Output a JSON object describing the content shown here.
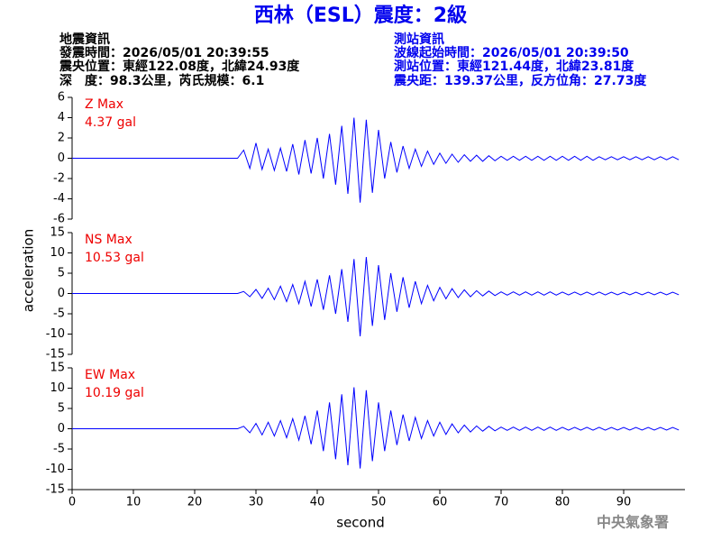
{
  "header": {
    "title": "西林（ESL）震度：2級",
    "left": [
      "地震資訊",
      "發震時間：2026/05/01 20:39:55",
      "震央位置：東經122.08度，北緯24.93度",
      "深　度：98.3公里，芮氏規模：6.1"
    ],
    "right": [
      "測站資訊",
      "波線起始時間：2026/05/01 20:39:50",
      "測站位置：東經121.44度，北緯23.81度",
      "震央距：139.37公里，反方位角：27.73度"
    ]
  },
  "footer": "中央氣象署",
  "chart_data": [
    {
      "type": "line",
      "label": "Z Max",
      "max_label": "4.37 gal",
      "color": "#0000ff",
      "xlim": [
        0,
        100
      ],
      "ylim": [
        -6,
        6
      ],
      "yticks": [
        -6,
        -4,
        -2,
        0,
        2,
        4,
        6
      ],
      "x": [
        0,
        1,
        2,
        3,
        4,
        5,
        6,
        7,
        8,
        9,
        10,
        11,
        12,
        13,
        14,
        15,
        16,
        17,
        18,
        19,
        20,
        21,
        22,
        23,
        24,
        25,
        26,
        27,
        28,
        29,
        30,
        31,
        32,
        33,
        34,
        35,
        36,
        37,
        38,
        39,
        40,
        41,
        42,
        43,
        44,
        45,
        46,
        47,
        48,
        49,
        50,
        51,
        52,
        53,
        54,
        55,
        56,
        57,
        58,
        59,
        60,
        61,
        62,
        63,
        64,
        65,
        66,
        67,
        68,
        69,
        70,
        71,
        72,
        73,
        74,
        75,
        76,
        77,
        78,
        79,
        80,
        81,
        82,
        83,
        84,
        85,
        86,
        87,
        88,
        89,
        90,
        91,
        92,
        93,
        94,
        95,
        96,
        97,
        98,
        99
      ],
      "values": [
        0,
        0,
        0,
        0,
        0,
        0,
        0,
        0,
        0,
        0,
        0,
        0,
        0,
        0,
        0,
        0,
        0,
        0,
        0,
        0,
        0,
        0,
        0,
        0,
        0,
        0,
        0,
        0,
        0.8,
        -1.0,
        1.5,
        -1.1,
        0.9,
        -1.2,
        1.0,
        -1.3,
        1.4,
        -1.6,
        1.8,
        -1.5,
        2.0,
        -2.0,
        2.4,
        -2.6,
        3.2,
        -3.5,
        4.0,
        -4.37,
        3.8,
        -3.4,
        2.8,
        -2.0,
        1.6,
        -1.4,
        1.2,
        -1.0,
        0.9,
        -0.8,
        0.7,
        -0.6,
        0.5,
        -0.5,
        0.4,
        -0.4,
        0.35,
        -0.3,
        0.3,
        -0.3,
        0.25,
        -0.25,
        0.2,
        -0.2,
        0.2,
        -0.2,
        0.2,
        -0.2,
        0.2,
        -0.2,
        0.2,
        -0.2,
        0.2,
        -0.2,
        0.2,
        -0.2,
        0.2,
        -0.2,
        0.15,
        -0.15,
        0.15,
        -0.15,
        0.15,
        -0.15,
        0.15,
        -0.15,
        0.15,
        -0.15,
        0.15,
        -0.15,
        0.15,
        -0.15
      ]
    },
    {
      "type": "line",
      "label": "NS Max",
      "max_label": "10.53 gal",
      "ylabel": "acceleration",
      "color": "#0000ff",
      "xlim": [
        0,
        100
      ],
      "ylim": [
        -15,
        15
      ],
      "yticks": [
        -15,
        -10,
        -5,
        0,
        5,
        10,
        15
      ],
      "x": [
        0,
        1,
        2,
        3,
        4,
        5,
        6,
        7,
        8,
        9,
        10,
        11,
        12,
        13,
        14,
        15,
        16,
        17,
        18,
        19,
        20,
        21,
        22,
        23,
        24,
        25,
        26,
        27,
        28,
        29,
        30,
        31,
        32,
        33,
        34,
        35,
        36,
        37,
        38,
        39,
        40,
        41,
        42,
        43,
        44,
        45,
        46,
        47,
        48,
        49,
        50,
        51,
        52,
        53,
        54,
        55,
        56,
        57,
        58,
        59,
        60,
        61,
        62,
        63,
        64,
        65,
        66,
        67,
        68,
        69,
        70,
        71,
        72,
        73,
        74,
        75,
        76,
        77,
        78,
        79,
        80,
        81,
        82,
        83,
        84,
        85,
        86,
        87,
        88,
        89,
        90,
        91,
        92,
        93,
        94,
        95,
        96,
        97,
        98,
        99
      ],
      "values": [
        0,
        0,
        0,
        0,
        0,
        0,
        0,
        0,
        0,
        0,
        0,
        0,
        0,
        0,
        0,
        0,
        0,
        0,
        0,
        0,
        0,
        0,
        0,
        0,
        0,
        0,
        0,
        0,
        0.5,
        -0.8,
        1.0,
        -1.2,
        1.3,
        -1.5,
        1.8,
        -2.0,
        2.2,
        -2.5,
        3.0,
        -3.2,
        3.5,
        -4.0,
        4.5,
        -5.0,
        6.0,
        -7.0,
        8.5,
        -10.53,
        9.0,
        -8.0,
        7.0,
        -6.5,
        5.0,
        -4.5,
        4.0,
        -3.5,
        3.0,
        -2.5,
        2.0,
        -1.8,
        1.5,
        -1.3,
        1.2,
        -1.0,
        0.9,
        -0.8,
        0.7,
        -0.6,
        0.6,
        -0.5,
        0.4,
        -0.4,
        0.4,
        -0.4,
        0.4,
        -0.4,
        0.4,
        -0.4,
        0.4,
        -0.4,
        0.35,
        -0.35,
        0.35,
        -0.35,
        0.35,
        -0.35,
        0.35,
        -0.35,
        0.3,
        -0.3,
        0.3,
        -0.3,
        0.3,
        -0.3,
        0.3,
        -0.3,
        0.3,
        -0.3,
        0.3,
        -0.3
      ]
    },
    {
      "type": "line",
      "label": "EW Max",
      "max_label": "10.19 gal",
      "xlabel": "second",
      "color": "#0000ff",
      "xlim": [
        0,
        100
      ],
      "ylim": [
        -15,
        15
      ],
      "yticks": [
        -15,
        -10,
        -5,
        0,
        5,
        10,
        15
      ],
      "xticks": [
        0,
        10,
        20,
        30,
        40,
        50,
        60,
        70,
        80,
        90
      ],
      "x": [
        0,
        1,
        2,
        3,
        4,
        5,
        6,
        7,
        8,
        9,
        10,
        11,
        12,
        13,
        14,
        15,
        16,
        17,
        18,
        19,
        20,
        21,
        22,
        23,
        24,
        25,
        26,
        27,
        28,
        29,
        30,
        31,
        32,
        33,
        34,
        35,
        36,
        37,
        38,
        39,
        40,
        41,
        42,
        43,
        44,
        45,
        46,
        47,
        48,
        49,
        50,
        51,
        52,
        53,
        54,
        55,
        56,
        57,
        58,
        59,
        60,
        61,
        62,
        63,
        64,
        65,
        66,
        67,
        68,
        69,
        70,
        71,
        72,
        73,
        74,
        75,
        76,
        77,
        78,
        79,
        80,
        81,
        82,
        83,
        84,
        85,
        86,
        87,
        88,
        89,
        90,
        91,
        92,
        93,
        94,
        95,
        96,
        97,
        98,
        99
      ],
      "values": [
        0,
        0,
        0,
        0,
        0,
        0,
        0,
        0,
        0,
        0,
        0,
        0,
        0,
        0,
        0,
        0,
        0,
        0,
        0,
        0,
        0,
        0,
        0,
        0,
        0,
        0,
        0,
        0,
        0.6,
        -1.0,
        1.3,
        -1.5,
        1.6,
        -1.8,
        2.0,
        -2.2,
        2.5,
        -2.8,
        3.2,
        -3.8,
        4.5,
        -5.5,
        6.5,
        -7.5,
        8.5,
        -9.0,
        10.19,
        -9.8,
        9.5,
        -8.0,
        6.5,
        -5.5,
        4.5,
        -4.0,
        3.5,
        -3.0,
        2.8,
        -2.4,
        2.0,
        -1.8,
        1.6,
        -1.4,
        1.2,
        -1.0,
        0.9,
        -0.8,
        0.7,
        -0.6,
        0.6,
        -0.5,
        0.4,
        -0.4,
        0.4,
        -0.4,
        0.4,
        -0.4,
        0.4,
        -0.4,
        0.4,
        -0.4,
        0.35,
        -0.35,
        0.35,
        -0.35,
        0.35,
        -0.35,
        0.35,
        -0.35,
        0.3,
        -0.3,
        0.3,
        -0.3,
        0.3,
        -0.3,
        0.3,
        -0.3,
        0.3,
        -0.3,
        0.3,
        -0.3
      ]
    }
  ]
}
